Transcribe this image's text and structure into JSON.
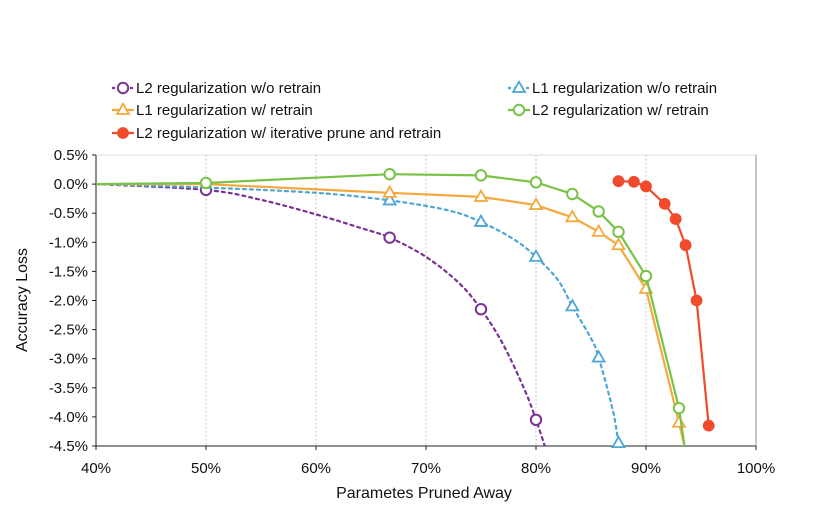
{
  "chart_data": {
    "type": "line",
    "title": "",
    "xlabel": "Parametes Pruned Away",
    "ylabel": "Accuracy Loss",
    "xlim": [
      40,
      100
    ],
    "ylim": [
      -4.5,
      0.5
    ],
    "grid": "vertical-dotted",
    "xticks": [
      {
        "v": 40,
        "label": "40%"
      },
      {
        "v": 50,
        "label": "50%"
      },
      {
        "v": 60,
        "label": "60%"
      },
      {
        "v": 70,
        "label": "70%"
      },
      {
        "v": 80,
        "label": "80%"
      },
      {
        "v": 90,
        "label": "90%"
      },
      {
        "v": 100,
        "label": "100%"
      }
    ],
    "yticks": [
      {
        "v": 0.5,
        "label": "0.5%"
      },
      {
        "v": 0.0,
        "label": "0.0%"
      },
      {
        "v": -0.5,
        "label": "-0.5%"
      },
      {
        "v": -1.0,
        "label": "-1.0%"
      },
      {
        "v": -1.5,
        "label": "-1.5%"
      },
      {
        "v": -2.0,
        "label": "-2.0%"
      },
      {
        "v": -2.5,
        "label": "-2.5%"
      },
      {
        "v": -3.0,
        "label": "-3.0%"
      },
      {
        "v": -3.5,
        "label": "-3.5%"
      },
      {
        "v": -4.0,
        "label": "-4.0%"
      },
      {
        "v": -4.5,
        "label": "-4.5%"
      }
    ],
    "series": [
      {
        "id": "l2-noretrain",
        "name": "L2 regularization w/o retrain",
        "color": "#7b3294",
        "marker": "circle-open",
        "dash": "dotted",
        "x": [
          50,
          66.7,
          75,
          80
        ],
        "y": [
          -0.1,
          -0.92,
          -2.15,
          -4.05
        ],
        "curve_x": [
          40,
          50,
          55,
          60,
          64,
          66.7,
          70,
          73,
          75,
          77,
          79,
          80,
          80.8
        ],
        "curve_y": [
          0,
          -0.1,
          -0.27,
          -0.52,
          -0.75,
          -0.92,
          -1.25,
          -1.7,
          -2.15,
          -2.75,
          -3.55,
          -4.05,
          -4.5
        ]
      },
      {
        "id": "l1-noretrain",
        "name": "L1 regularization w/o retrain",
        "color": "#4da6d6",
        "marker": "triangle-open",
        "dash": "dotted",
        "x": [
          66.7,
          75,
          80,
          83.3,
          85.7,
          87.5
        ],
        "y": [
          -0.28,
          -0.65,
          -1.25,
          -2.1,
          -2.98,
          -4.45
        ],
        "curve_x": [
          40,
          50,
          60,
          66.7,
          72,
          75,
          78,
          80,
          82,
          83.3,
          85,
          85.7,
          87,
          87.5,
          87.7
        ],
        "curve_y": [
          0,
          -0.06,
          -0.15,
          -0.28,
          -0.45,
          -0.65,
          -0.95,
          -1.25,
          -1.65,
          -2.1,
          -2.65,
          -2.98,
          -3.9,
          -4.45,
          -4.5
        ]
      },
      {
        "id": "l1-retrain",
        "name": "L1 regularization w/ retrain",
        "color": "#f5a93c",
        "marker": "triangle-open",
        "dash": "solid",
        "x": [
          40,
          50,
          66.7,
          75,
          80,
          83.3,
          85.7,
          87.5,
          90,
          93,
          93.5
        ],
        "y": [
          0,
          0,
          -0.15,
          -0.22,
          -0.36,
          -0.57,
          -0.82,
          -1.05,
          -1.8,
          -4.1,
          -4.5
        ],
        "markers_x": [
          66.7,
          75,
          80,
          83.3,
          85.7,
          87.5,
          90,
          93
        ],
        "markers_y": [
          -0.15,
          -0.22,
          -0.36,
          -0.57,
          -0.82,
          -1.05,
          -1.8,
          -4.1
        ]
      },
      {
        "id": "l2-retrain",
        "name": "L2 regularization w/ retrain",
        "color": "#78c347",
        "marker": "circle-open",
        "dash": "solid",
        "x": [
          40,
          50,
          66.7,
          75,
          80,
          83.3,
          85.7,
          87.5,
          90,
          93,
          93.5
        ],
        "y": [
          0,
          0.02,
          0.17,
          0.15,
          0.03,
          -0.17,
          -0.47,
          -0.82,
          -1.58,
          -3.85,
          -4.5
        ],
        "markers_x": [
          50,
          66.7,
          75,
          80,
          83.3,
          85.7,
          87.5,
          90,
          93
        ],
        "markers_y": [
          0.02,
          0.17,
          0.15,
          0.03,
          -0.17,
          -0.47,
          -0.82,
          -1.58,
          -3.85
        ]
      },
      {
        "id": "l2-iterative",
        "name": "L2 regularization w/ iterative prune and retrain",
        "color": "#ef4b2c",
        "marker": "circle-filled",
        "dash": "solid",
        "x": [
          87.5,
          88.9,
          90,
          91.7,
          92.7,
          93.6,
          94.6,
          95.7
        ],
        "y": [
          0.05,
          0.04,
          -0.04,
          -0.34,
          -0.6,
          -1.05,
          -2.0,
          -4.15
        ],
        "markers_x": [
          87.5,
          88.9,
          90,
          91.7,
          92.7,
          93.6,
          94.6,
          95.7
        ],
        "markers_y": [
          0.05,
          0.04,
          -0.04,
          -0.34,
          -0.6,
          -1.05,
          -2.0,
          -4.15
        ]
      }
    ],
    "legend": {
      "placement": "top",
      "order": [
        "l2-noretrain",
        "l1-noretrain",
        "l1-retrain",
        "l2-retrain",
        "l2-iterative"
      ]
    }
  }
}
